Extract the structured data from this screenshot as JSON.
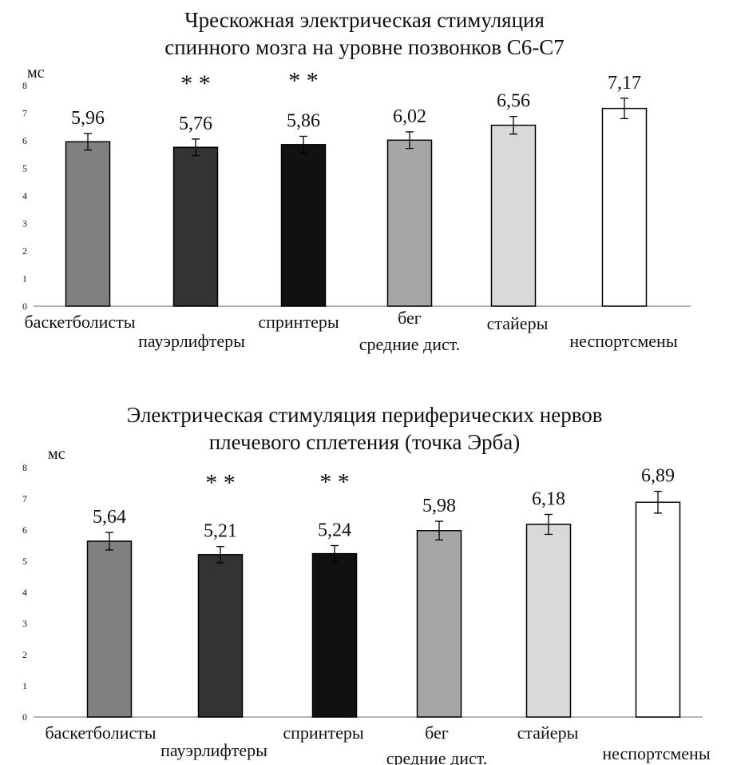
{
  "chart_data": [
    {
      "type": "bar",
      "title_lines": [
        "Чрескожная электрическая стимуляция",
        "спинного мозга на уровне позвонков C6-C7"
      ],
      "ylabel": "мс",
      "ylim": [
        0,
        8
      ],
      "yticks": [
        "0",
        "1",
        "2",
        "3",
        "4",
        "5",
        "6",
        "7",
        "8"
      ],
      "categories": [
        "баскетболисты",
        "пауэрлифтеры",
        "спринтеры",
        "бег средние дист.",
        "стайеры",
        "неспортсмены"
      ],
      "category_label_lines": [
        [
          "баскетболисты"
        ],
        [
          "пауэрлифтеры"
        ],
        [
          "спринтеры"
        ],
        [
          "бег",
          "средние дист."
        ],
        [
          "стайеры"
        ],
        [
          "неспортсмены"
        ]
      ],
      "values": [
        5.96,
        5.76,
        5.86,
        6.02,
        6.56,
        7.17
      ],
      "value_labels": [
        "5,96",
        "5,76",
        "5,86",
        "6,02",
        "6,56",
        "7,17"
      ],
      "error": [
        0.3,
        0.3,
        0.3,
        0.3,
        0.32,
        0.37
      ],
      "significance": [
        "",
        "* *",
        "* *",
        "",
        "",
        ""
      ],
      "bar_colors": [
        "#808080",
        "#333333",
        "#111111",
        "#a6a6a6",
        "#d9d9d9",
        "#ffffff"
      ],
      "grid": false,
      "legend": "none"
    },
    {
      "type": "bar",
      "title_lines": [
        "Электрическая стимуляция периферических нервов",
        "плечевого сплетения (точка Эрба)"
      ],
      "ylabel": "мс",
      "ylim": [
        0,
        8
      ],
      "yticks": [
        "0",
        "1",
        "2",
        "3",
        "4",
        "5",
        "6",
        "7",
        "8"
      ],
      "categories": [
        "баскетболисты",
        "пауэрлифтеры",
        "спринтеры",
        "бег средние дист.",
        "стайеры",
        "неспортсмены"
      ],
      "category_label_lines": [
        [
          "баскетболисты"
        ],
        [
          "пауэрлифтеры"
        ],
        [
          "спринтеры"
        ],
        [
          "бег",
          "средние дист."
        ],
        [
          "стайеры"
        ],
        [
          "неспортсмены"
        ]
      ],
      "values": [
        5.64,
        5.21,
        5.24,
        5.98,
        6.18,
        6.89
      ],
      "value_labels": [
        "5,64",
        "5,21",
        "5,24",
        "5,98",
        "6,18",
        "6,89"
      ],
      "error": [
        0.28,
        0.26,
        0.26,
        0.3,
        0.32,
        0.35
      ],
      "significance": [
        "",
        "* *",
        "* *",
        "",
        "",
        ""
      ],
      "bar_colors": [
        "#808080",
        "#333333",
        "#111111",
        "#a6a6a6",
        "#d9d9d9",
        "#ffffff"
      ],
      "grid": false,
      "legend": "none"
    }
  ]
}
